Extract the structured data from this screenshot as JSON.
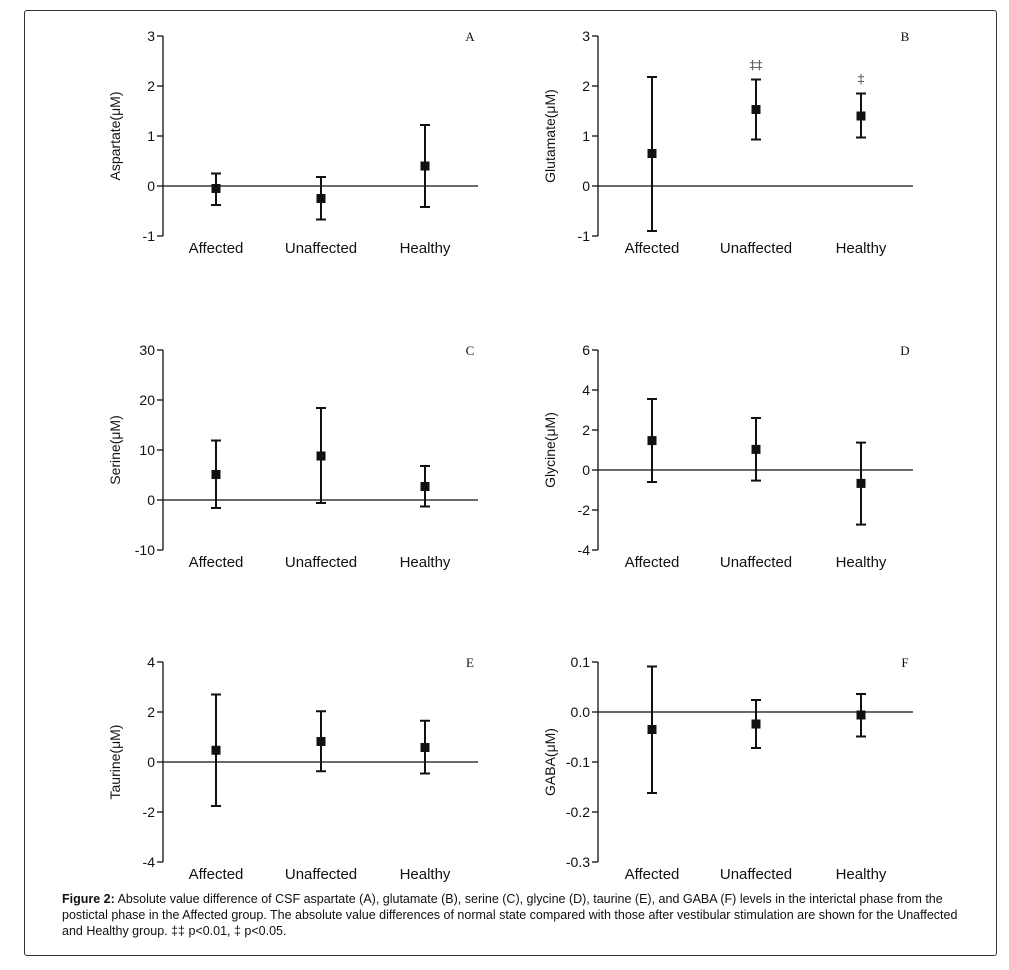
{
  "caption": {
    "prefix": "Figure 2:",
    "text": " Absolute value difference of CSF aspartate (A), glutamate (B), serine (C), glycine (D), taurine (E), and GABA (F) levels in the interictal phase from the postictal phase in the Affected group. The absolute value differences of normal state compared with those after vestibular stimulation are shown for the Unaffected and Healthy group. ‡‡ p<0.01, ‡ p<0.05."
  },
  "chart_data": [
    {
      "type": "scatter",
      "panel": "A",
      "ylabel": "Aspartate(μM)",
      "categories": [
        "Affected",
        "Unaffected",
        "Healthy"
      ],
      "values": [
        -0.05,
        -0.25,
        0.4
      ],
      "err_low": [
        -0.38,
        -0.67,
        -0.42
      ],
      "err_high": [
        0.25,
        0.18,
        1.22
      ],
      "significance": [
        "",
        "",
        ""
      ],
      "ylim": [
        -1,
        3
      ],
      "yticks": [
        -1,
        0,
        1,
        2,
        3
      ],
      "ytick_labels": [
        "-1",
        "0",
        "1",
        "2",
        "3"
      ]
    },
    {
      "type": "scatter",
      "panel": "B",
      "ylabel": "Glutamate(μM)",
      "categories": [
        "Affected",
        "Unaffected",
        "Healthy"
      ],
      "values": [
        0.65,
        1.53,
        1.4
      ],
      "err_low": [
        -0.9,
        0.93,
        0.97
      ],
      "err_high": [
        2.18,
        2.13,
        1.85
      ],
      "significance": [
        "",
        "‡‡",
        "‡"
      ],
      "ylim": [
        -1,
        3
      ],
      "yticks": [
        -1,
        0,
        1,
        2,
        3
      ],
      "ytick_labels": [
        "-1",
        "0",
        "1",
        "2",
        "3"
      ]
    },
    {
      "type": "scatter",
      "panel": "C",
      "ylabel": "Serine(μM)",
      "categories": [
        "Affected",
        "Unaffected",
        "Healthy"
      ],
      "values": [
        5.1,
        8.8,
        2.7
      ],
      "err_low": [
        -1.6,
        -0.6,
        -1.3
      ],
      "err_high": [
        11.9,
        18.4,
        6.8
      ],
      "significance": [
        "",
        "",
        ""
      ],
      "ylim": [
        -10,
        30
      ],
      "yticks": [
        -10,
        0,
        10,
        20,
        30
      ],
      "ytick_labels": [
        "-10",
        "0",
        "10",
        "20",
        "30"
      ]
    },
    {
      "type": "scatter",
      "panel": "D",
      "ylabel": "Glycine(μM)",
      "categories": [
        "Affected",
        "Unaffected",
        "Healthy"
      ],
      "values": [
        1.47,
        1.03,
        -0.67
      ],
      "err_low": [
        -0.6,
        -0.53,
        -2.73
      ],
      "err_high": [
        3.55,
        2.6,
        1.37
      ],
      "significance": [
        "",
        "",
        ""
      ],
      "ylim": [
        -4,
        6
      ],
      "yticks": [
        -4,
        -2,
        0,
        2,
        4,
        6
      ],
      "ytick_labels": [
        "-4",
        "-2",
        "0",
        "2",
        "4",
        "6"
      ]
    },
    {
      "type": "scatter",
      "panel": "E",
      "ylabel": "Taurine(μM)",
      "categories": [
        "Affected",
        "Unaffected",
        "Healthy"
      ],
      "values": [
        0.47,
        0.82,
        0.58
      ],
      "err_low": [
        -1.76,
        -0.37,
        -0.46
      ],
      "err_high": [
        2.7,
        2.03,
        1.65
      ],
      "significance": [
        "",
        "",
        ""
      ],
      "ylim": [
        -4,
        4
      ],
      "yticks": [
        -4,
        -2,
        0,
        2,
        4
      ],
      "ytick_labels": [
        "-4",
        "-2",
        "0",
        "2",
        "4"
      ]
    },
    {
      "type": "scatter",
      "panel": "F",
      "ylabel": "GABA(μM)",
      "categories": [
        "Affected",
        "Unaffected",
        "Healthy"
      ],
      "values": [
        -0.035,
        -0.024,
        -0.006
      ],
      "err_low": [
        -0.162,
        -0.072,
        -0.049
      ],
      "err_high": [
        0.091,
        0.024,
        0.036
      ],
      "significance": [
        "",
        "",
        ""
      ],
      "ylim": [
        -0.3,
        0.1
      ],
      "yticks": [
        -0.3,
        -0.2,
        -0.1,
        0.0,
        0.1
      ],
      "ytick_labels": [
        "-0.3",
        "-0.2",
        "-0.1",
        "0.0",
        "0.1"
      ]
    }
  ]
}
